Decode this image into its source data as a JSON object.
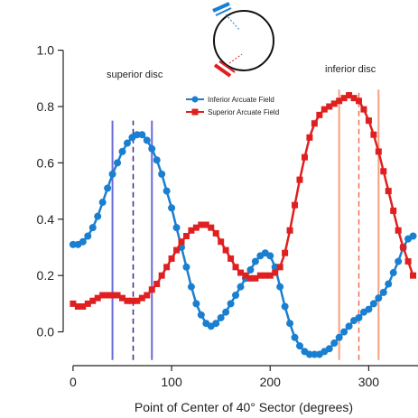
{
  "chart_data": {
    "type": "line",
    "title": "",
    "xlabel": "Point of Center of 40° Sector (degrees)",
    "ylabel": "",
    "xlim": [
      -10,
      350
    ],
    "ylim": [
      -0.12,
      1.05
    ],
    "x_ticks": [
      0,
      100,
      200,
      300
    ],
    "y_ticks": [
      0.0,
      0.2,
      0.4,
      0.6,
      0.8,
      1.0
    ],
    "x_tick_labels": [
      "0",
      "100",
      "200",
      "300"
    ],
    "y_tick_labels": [
      "0.0",
      "0.2",
      "0.4",
      "0.6",
      "0.8",
      "1.0"
    ],
    "grid": false,
    "legend_position": "top-center",
    "series": [
      {
        "name": "Inferior Arcuate Field",
        "color": "#1a7fd0",
        "marker": "circle",
        "points": [
          [
            0,
            0.31
          ],
          [
            5,
            0.31
          ],
          [
            10,
            0.32
          ],
          [
            15,
            0.34
          ],
          [
            20,
            0.37
          ],
          [
            25,
            0.41
          ],
          [
            30,
            0.46
          ],
          [
            35,
            0.51
          ],
          [
            40,
            0.56
          ],
          [
            45,
            0.6
          ],
          [
            50,
            0.64
          ],
          [
            55,
            0.67
          ],
          [
            60,
            0.69
          ],
          [
            65,
            0.7
          ],
          [
            70,
            0.7
          ],
          [
            75,
            0.68
          ],
          [
            80,
            0.65
          ],
          [
            85,
            0.61
          ],
          [
            90,
            0.56
          ],
          [
            95,
            0.5
          ],
          [
            100,
            0.44
          ],
          [
            105,
            0.37
          ],
          [
            110,
            0.3
          ],
          [
            115,
            0.23
          ],
          [
            120,
            0.16
          ],
          [
            125,
            0.1
          ],
          [
            130,
            0.06
          ],
          [
            135,
            0.03
          ],
          [
            140,
            0.02
          ],
          [
            145,
            0.03
          ],
          [
            150,
            0.05
          ],
          [
            155,
            0.07
          ],
          [
            160,
            0.1
          ],
          [
            165,
            0.13
          ],
          [
            170,
            0.16
          ],
          [
            175,
            0.19
          ],
          [
            180,
            0.22
          ],
          [
            185,
            0.25
          ],
          [
            190,
            0.27
          ],
          [
            195,
            0.28
          ],
          [
            200,
            0.27
          ],
          [
            205,
            0.23
          ],
          [
            210,
            0.16
          ],
          [
            215,
            0.09
          ],
          [
            220,
            0.03
          ],
          [
            225,
            -0.02
          ],
          [
            230,
            -0.05
          ],
          [
            235,
            -0.07
          ],
          [
            240,
            -0.08
          ],
          [
            245,
            -0.08
          ],
          [
            250,
            -0.08
          ],
          [
            255,
            -0.07
          ],
          [
            260,
            -0.06
          ],
          [
            265,
            -0.04
          ],
          [
            270,
            -0.02
          ],
          [
            275,
            0.0
          ],
          [
            280,
            0.02
          ],
          [
            285,
            0.04
          ],
          [
            290,
            0.05
          ],
          [
            295,
            0.07
          ],
          [
            300,
            0.08
          ],
          [
            305,
            0.1
          ],
          [
            310,
            0.12
          ],
          [
            315,
            0.14
          ],
          [
            320,
            0.17
          ],
          [
            325,
            0.21
          ],
          [
            330,
            0.25
          ],
          [
            335,
            0.3
          ],
          [
            340,
            0.33
          ],
          [
            345,
            0.34
          ]
        ]
      },
      {
        "name": "Superior Arcuate Field",
        "color": "#e02020",
        "marker": "square",
        "points": [
          [
            0,
            0.1
          ],
          [
            5,
            0.09
          ],
          [
            10,
            0.09
          ],
          [
            15,
            0.1
          ],
          [
            20,
            0.11
          ],
          [
            25,
            0.12
          ],
          [
            30,
            0.13
          ],
          [
            35,
            0.13
          ],
          [
            40,
            0.13
          ],
          [
            45,
            0.13
          ],
          [
            50,
            0.12
          ],
          [
            55,
            0.11
          ],
          [
            60,
            0.11
          ],
          [
            65,
            0.11
          ],
          [
            70,
            0.12
          ],
          [
            75,
            0.13
          ],
          [
            80,
            0.15
          ],
          [
            85,
            0.17
          ],
          [
            90,
            0.2
          ],
          [
            95,
            0.23
          ],
          [
            100,
            0.26
          ],
          [
            105,
            0.29
          ],
          [
            110,
            0.32
          ],
          [
            115,
            0.34
          ],
          [
            120,
            0.36
          ],
          [
            125,
            0.37
          ],
          [
            130,
            0.38
          ],
          [
            135,
            0.38
          ],
          [
            140,
            0.37
          ],
          [
            145,
            0.35
          ],
          [
            150,
            0.32
          ],
          [
            155,
            0.29
          ],
          [
            160,
            0.26
          ],
          [
            165,
            0.23
          ],
          [
            170,
            0.21
          ],
          [
            175,
            0.2
          ],
          [
            180,
            0.19
          ],
          [
            185,
            0.19
          ],
          [
            190,
            0.2
          ],
          [
            195,
            0.2
          ],
          [
            200,
            0.2
          ],
          [
            205,
            0.21
          ],
          [
            210,
            0.23
          ],
          [
            215,
            0.28
          ],
          [
            220,
            0.36
          ],
          [
            225,
            0.45
          ],
          [
            230,
            0.54
          ],
          [
            235,
            0.62
          ],
          [
            240,
            0.69
          ],
          [
            245,
            0.74
          ],
          [
            250,
            0.77
          ],
          [
            255,
            0.79
          ],
          [
            260,
            0.8
          ],
          [
            265,
            0.81
          ],
          [
            270,
            0.82
          ],
          [
            275,
            0.83
          ],
          [
            280,
            0.84
          ],
          [
            285,
            0.83
          ],
          [
            290,
            0.82
          ],
          [
            295,
            0.79
          ],
          [
            300,
            0.75
          ],
          [
            305,
            0.7
          ],
          [
            310,
            0.64
          ],
          [
            315,
            0.57
          ],
          [
            320,
            0.5
          ],
          [
            325,
            0.43
          ],
          [
            330,
            0.36
          ],
          [
            335,
            0.3
          ],
          [
            340,
            0.25
          ],
          [
            345,
            0.2
          ]
        ]
      }
    ],
    "vertical_lines": [
      {
        "x": 40,
        "style": "solid",
        "color": "#6a6ad8"
      },
      {
        "x": 61,
        "style": "dashed",
        "color": "#3a2a8a"
      },
      {
        "x": 80,
        "style": "solid",
        "color": "#6a6ad8"
      },
      {
        "x": 270,
        "style": "solid",
        "color": "#f4a080"
      },
      {
        "x": 290,
        "style": "dashed",
        "color": "#f07050"
      },
      {
        "x": 310,
        "style": "solid",
        "color": "#f4a080"
      }
    ],
    "annotations": [
      {
        "text": "superior disc",
        "near": "left-peak"
      },
      {
        "text": "inferior disc",
        "near": "right-peak"
      }
    ]
  }
}
